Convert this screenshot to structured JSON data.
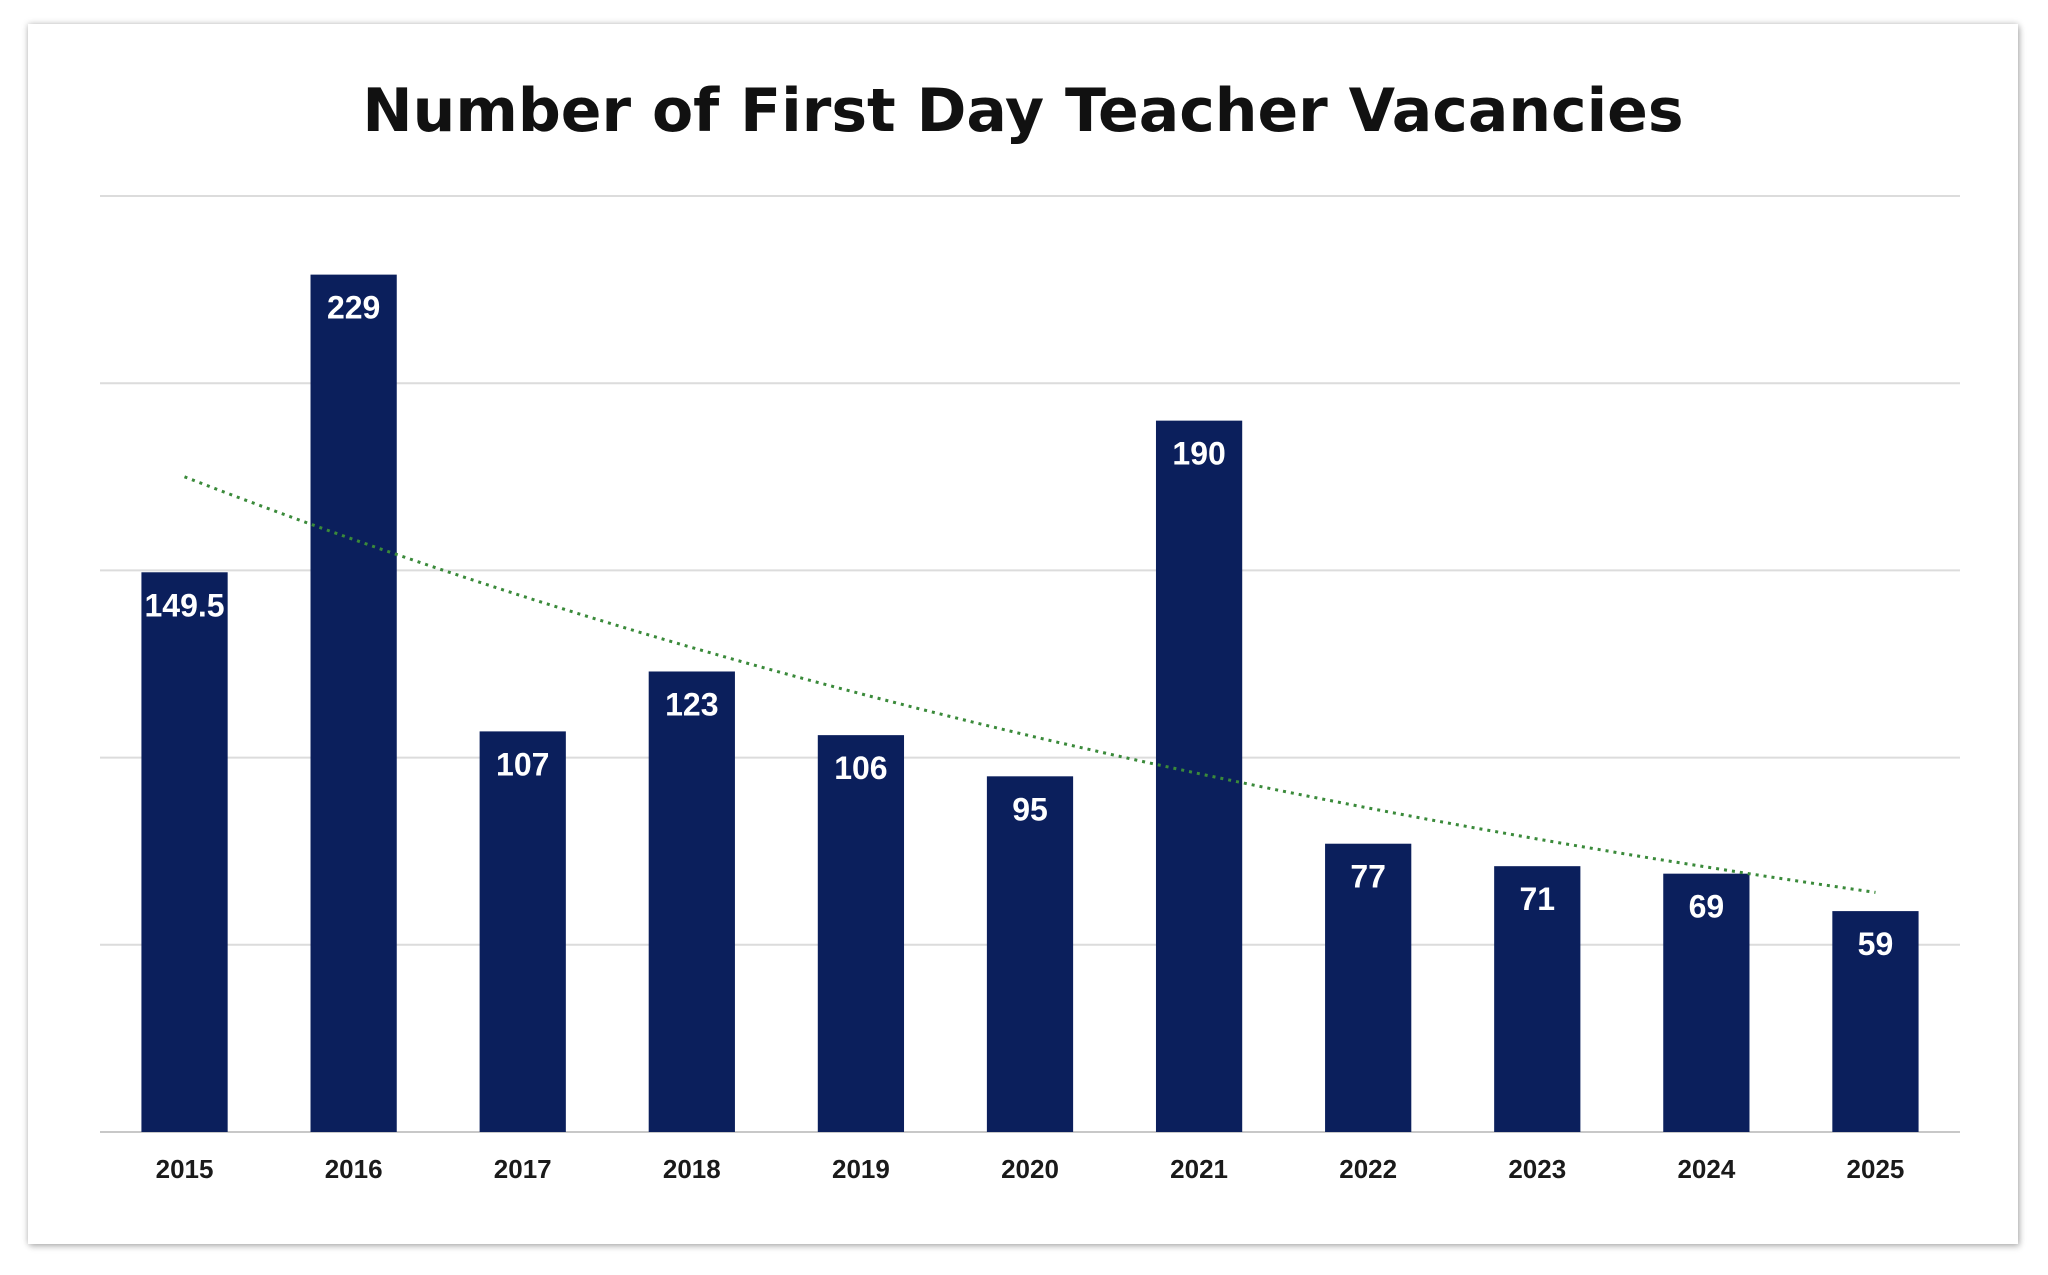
{
  "chart_data": {
    "type": "bar",
    "title": "Number of First Day Teacher Vacancies",
    "xlabel": "",
    "ylabel": "",
    "categories": [
      "2015",
      "2016",
      "2017",
      "2018",
      "2019",
      "2020",
      "2021",
      "2022",
      "2023",
      "2024",
      "2025"
    ],
    "values": [
      149.5,
      229,
      107,
      123,
      106,
      95,
      190,
      77,
      71,
      69,
      59
    ],
    "data_labels": [
      "149.5",
      "229",
      "107",
      "123",
      "106",
      "95",
      "190",
      "77",
      "71",
      "69",
      "59"
    ],
    "ylim": [
      0,
      250
    ],
    "grid": true,
    "legend": "none",
    "trendline": {
      "type": "exponential",
      "style": "dotted",
      "start_value": 175,
      "end_value": 64
    },
    "colors": {
      "bar": "#0b1f5c",
      "trendline": "#3a8a3a",
      "gridline": "#dcdcdc"
    }
  }
}
